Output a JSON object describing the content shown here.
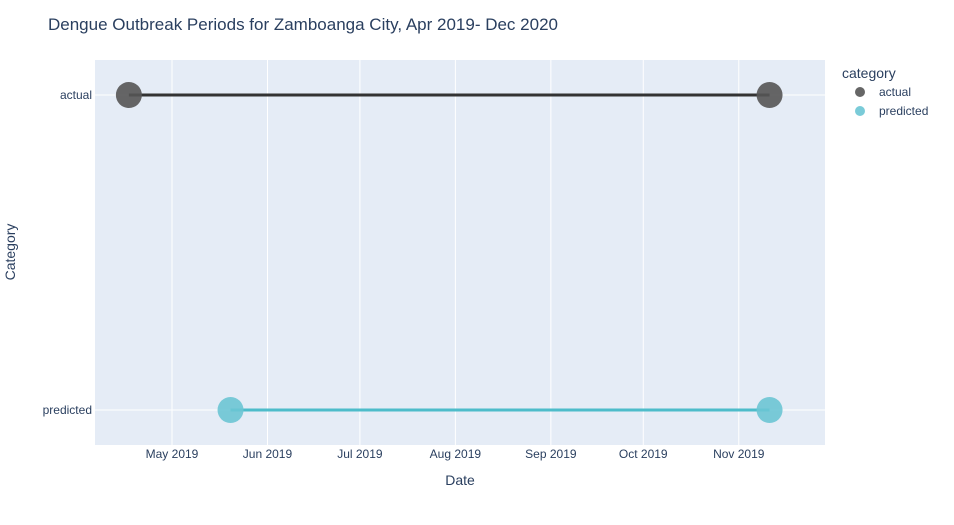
{
  "chart_data": {
    "type": "line",
    "title": "Dengue Outbreak Periods for Zamboanga City, Apr 2019- Dec 2020",
    "xlabel": "Date",
    "ylabel": "Category",
    "x_range": [
      "2019-04-06",
      "2019-11-29"
    ],
    "x_ticks": [
      {
        "date": "2019-05-01",
        "label": "May 2019"
      },
      {
        "date": "2019-06-01",
        "label": "Jun 2019"
      },
      {
        "date": "2019-07-01",
        "label": "Jul 2019"
      },
      {
        "date": "2019-08-01",
        "label": "Aug 2019"
      },
      {
        "date": "2019-09-01",
        "label": "Sep 2019"
      },
      {
        "date": "2019-10-01",
        "label": "Oct 2019"
      },
      {
        "date": "2019-11-01",
        "label": "Nov 2019"
      }
    ],
    "categories": [
      "actual",
      "predicted"
    ],
    "legend_title": "category",
    "legend_position": "top-right",
    "grid": true,
    "series": [
      {
        "name": "actual",
        "color": "#555555",
        "line_color": "#333333",
        "points": [
          {
            "x": "2019-04-17",
            "y": "actual"
          },
          {
            "x": "2019-11-11",
            "y": "actual"
          }
        ]
      },
      {
        "name": "predicted",
        "color": "#6cc5d4",
        "line_color": "#4dbcca",
        "points": [
          {
            "x": "2019-05-20",
            "y": "predicted"
          },
          {
            "x": "2019-11-11",
            "y": "predicted"
          }
        ]
      }
    ],
    "colors": {
      "plot_bg": "#e5ecf6",
      "grid": "#ffffff",
      "text": "#2a3f5f"
    }
  }
}
